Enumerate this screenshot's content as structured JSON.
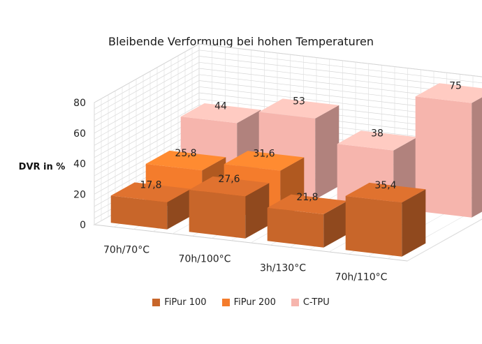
{
  "chart_data": {
    "type": "bar",
    "title": "Bleibende Verformung bei hohen Temperaturen",
    "ylabel": "DVR in %",
    "xlabel": "",
    "ylim": [
      0,
      80
    ],
    "yticks": [
      0,
      20,
      40,
      60,
      80
    ],
    "grid": true,
    "legend_position": "bottom",
    "categories": [
      "70h/70°C",
      "70h/100°C",
      "3h/130°C",
      "70h/110°C"
    ],
    "series": [
      {
        "name": "FiPur 100",
        "values": [
          17.8,
          27.6,
          21.8,
          35.4
        ],
        "labels": [
          "17,8",
          "27,6",
          "21,8",
          "35,4"
        ],
        "color": "#c8662a"
      },
      {
        "name": "FiPur 200",
        "values": [
          25.8,
          31.6,
          null,
          null
        ],
        "labels": [
          "25,8",
          "31,6",
          "",
          ""
        ],
        "color": "#f47c2c"
      },
      {
        "name": "C-TPU",
        "values": [
          44,
          53,
          38,
          75
        ],
        "labels": [
          "44",
          "53",
          "38",
          "75"
        ],
        "color": "#f6b5ad"
      }
    ]
  }
}
